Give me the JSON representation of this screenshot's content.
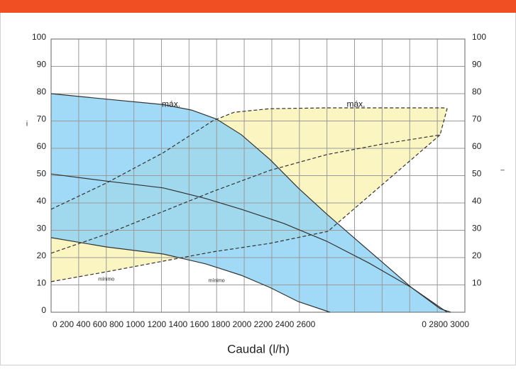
{
  "chart_data": {
    "type": "line",
    "xlabel": "Caudal (l/h)",
    "ylabel": "i",
    "y2label": "–",
    "xlim": [
      0,
      3000
    ],
    "xticks": [
      0,
      200,
      400,
      600,
      800,
      1000,
      1200,
      1400,
      1600,
      1800,
      2000,
      2200,
      2400,
      2600,
      2800,
      3000
    ],
    "xtick_label_rows": [
      "0 200 400 600 800 1000 1200 1400 1600 1800 2000 2200 2400 2600",
      "0 2800 3000"
    ],
    "ylim": [
      0,
      100
    ],
    "yticks": [
      0,
      10,
      20,
      30,
      40,
      50,
      60,
      70,
      80,
      90,
      100
    ],
    "y2lim": [
      0,
      100
    ],
    "y2ticks": [
      10,
      20,
      30,
      40,
      50,
      60,
      70,
      80,
      90,
      100
    ],
    "grid": true,
    "area_colors": [
      "#fbf5c2",
      "#8fd3f4"
    ],
    "series": [
      {
        "style": "solid",
        "color": "#333333",
        "x": [
          0,
          401,
          813,
          1019,
          1199,
          1379,
          1585,
          1791,
          1997,
          2202,
          2408,
          2614,
          2820,
          2897
        ],
        "values": [
          80,
          78,
          76,
          74,
          70.7,
          65,
          56,
          45.5,
          36,
          27,
          18,
          9,
          1.3,
          0
        ]
      },
      {
        "style": "solid",
        "color": "#333333",
        "x": [
          0,
          401,
          813,
          1122,
          1379,
          1688,
          1997,
          2305,
          2614,
          2871
        ],
        "values": [
          50.6,
          48,
          45.5,
          41.6,
          37.7,
          32.5,
          26,
          18,
          9,
          0
        ]
      },
      {
        "style": "solid",
        "color": "#333333",
        "x": [
          0,
          401,
          813,
          1122,
          1379,
          1585,
          1791,
          2022
        ],
        "values": [
          27.3,
          23.9,
          21.3,
          17.7,
          13.5,
          9.1,
          3.9,
          0
        ]
      },
      {
        "style": "dashed",
        "color": "#333333",
        "x": [
          0,
          401,
          813,
          1173,
          1327,
          1585,
          1997,
          2846,
          2871,
          2820
        ],
        "values": [
          37.7,
          47.3,
          58.4,
          70.1,
          73.2,
          74.5,
          74.8,
          74.8,
          74.5,
          64.9
        ]
      },
      {
        "style": "dashed",
        "color": "#333333",
        "x": [
          0,
          401,
          813,
          1173,
          1585,
          1997,
          2408,
          2820
        ],
        "values": [
          21.6,
          28.6,
          36.9,
          44.2,
          51.9,
          57.7,
          61.6,
          64.9
        ]
      },
      {
        "style": "dashed",
        "color": "#333333",
        "x": [
          2820,
          2007
        ],
        "values": [
          64.9,
          29.6
        ]
      },
      {
        "style": "dashed",
        "color": "#333333",
        "x": [
          0,
          401,
          813,
          1173,
          1585,
          2007
        ],
        "values": [
          11.2,
          14.8,
          18.7,
          22.1,
          25.2,
          29.6
        ]
      }
    ],
    "annotations": [
      {
        "text": "máx.",
        "x": 870,
        "y": 76,
        "size": "normal"
      },
      {
        "text": "máx.",
        "x": 2210,
        "y": 76,
        "size": "normal"
      },
      {
        "text": "mínimo",
        "x": 400,
        "y": 12,
        "size": "small"
      },
      {
        "text": "mínimo",
        "x": 1200,
        "y": 11.5,
        "size": "small"
      }
    ]
  }
}
